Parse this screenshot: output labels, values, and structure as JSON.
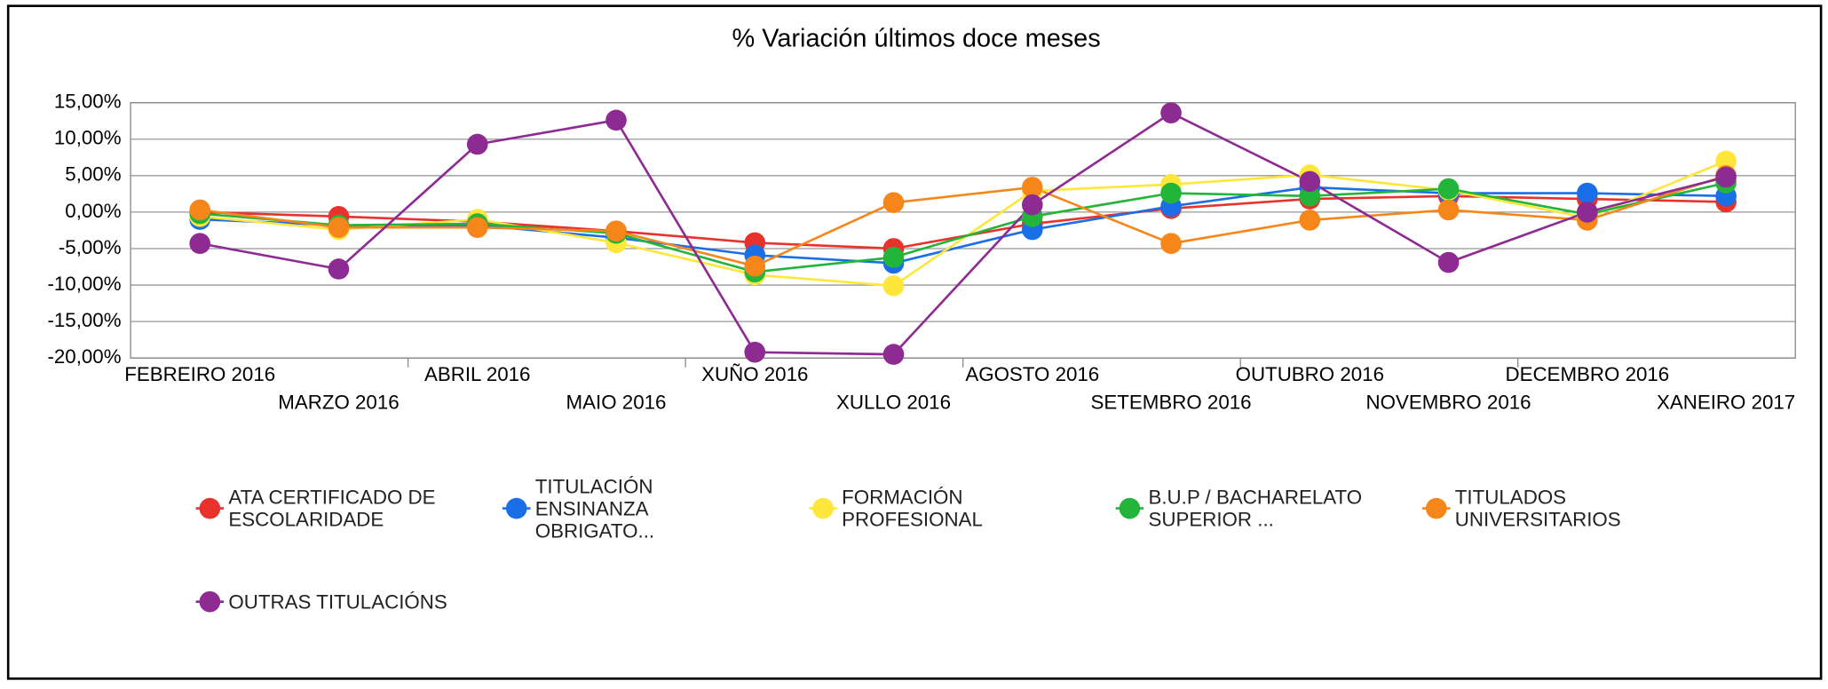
{
  "chart_data": {
    "type": "line",
    "title": "% Variación últimos doce meses",
    "categories": [
      "FEBREIRO 2016",
      "MARZO 2016",
      "ABRIL 2016",
      "MAIO 2016",
      "XUÑO 2016",
      "XULLO 2016",
      "AGOSTO 2016",
      "SETEMBRO 2016",
      "OUTUBRO 2016",
      "NOVEMBRO 2016",
      "DECEMBRO 2016",
      "XANEIRO 2017"
    ],
    "ylim": [
      -20,
      15
    ],
    "yticks": [
      {
        "value": -20,
        "label": "-20,00%"
      },
      {
        "value": -15,
        "label": "-15,00%"
      },
      {
        "value": -10,
        "label": "-10,00%"
      },
      {
        "value": -5,
        "label": "-5,00%"
      },
      {
        "value": 0,
        "label": "0,00%"
      },
      {
        "value": 5,
        "label": "5,00%"
      },
      {
        "value": 10,
        "label": "10,00%"
      },
      {
        "value": 15,
        "label": "15,00%"
      }
    ],
    "grid": true,
    "series": [
      {
        "name": "ATA CERTIFICADO DE ESCOLARIDADE",
        "color": "#e8322b",
        "values": [
          0.0,
          -0.6,
          -1.3,
          -2.6,
          -4.2,
          -5.0,
          -1.6,
          0.5,
          1.8,
          2.2,
          1.8,
          1.4
        ]
      },
      {
        "name": "TITULACIÓN ENSINANZA OBRIGATO...",
        "color": "#1a6fe8",
        "values": [
          -1.0,
          -1.8,
          -1.8,
          -3.5,
          -5.9,
          -7.0,
          -2.4,
          0.8,
          3.4,
          2.6,
          2.6,
          2.2
        ]
      },
      {
        "name": "FORMACIÓN PROFESIONAL",
        "color": "#ffe63b",
        "values": [
          -0.6,
          -2.4,
          -1.0,
          -4.2,
          -8.6,
          -10.1,
          2.9,
          3.8,
          5.1,
          3.0,
          -0.8,
          7.0
        ]
      },
      {
        "name": "B.U.P / BACHARELATO SUPERIOR ...",
        "color": "#22b53a",
        "values": [
          -0.2,
          -1.8,
          -1.6,
          -2.9,
          -8.2,
          -6.2,
          -0.6,
          2.6,
          2.2,
          3.2,
          -0.3,
          4.0
        ]
      },
      {
        "name": "TITULADOS UNIVERSITARIOS",
        "color": "#f7861a",
        "values": [
          0.3,
          -2.1,
          -2.1,
          -2.6,
          -7.4,
          1.3,
          3.4,
          -4.3,
          -1.1,
          0.3,
          -1.1,
          5.0
        ]
      },
      {
        "name": "OUTRAS TITULACIÓNS",
        "color": "#8e2b93",
        "values": [
          -4.3,
          -7.8,
          9.3,
          12.6,
          -19.2,
          -19.5,
          1.0,
          13.6,
          4.2,
          -6.9,
          0.0,
          4.8
        ]
      }
    ]
  }
}
